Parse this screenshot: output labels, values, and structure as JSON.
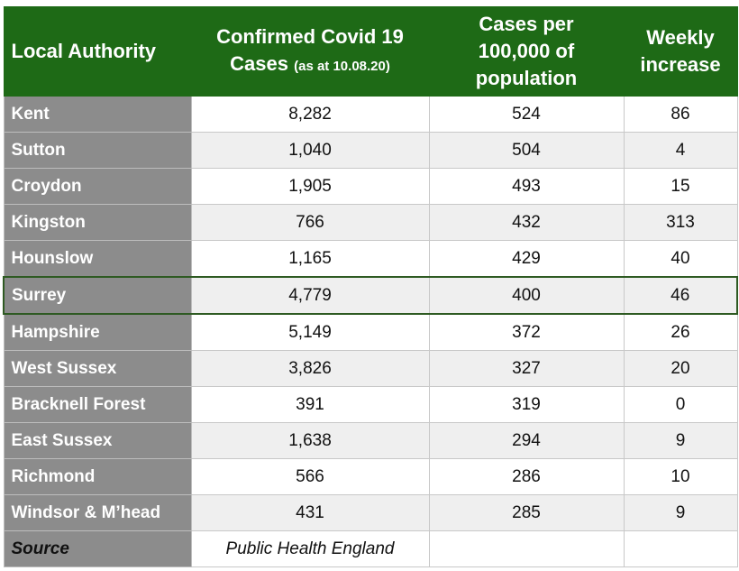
{
  "chart_data": {
    "type": "table",
    "columns": [
      "Local Authority",
      "Confirmed Covid 19 Cases (as at 10.08.20)",
      "Cases per 100,000 of population",
      "Weekly increase"
    ],
    "rows": [
      {
        "name": "Kent",
        "cases": "8,282",
        "per100k": "524",
        "weekly": "86"
      },
      {
        "name": "Sutton",
        "cases": "1,040",
        "per100k": "504",
        "weekly": "4"
      },
      {
        "name": "Croydon",
        "cases": "1,905",
        "per100k": "493",
        "weekly": "15"
      },
      {
        "name": "Kingston",
        "cases": "766",
        "per100k": "432",
        "weekly": "313"
      },
      {
        "name": "Hounslow",
        "cases": "1,165",
        "per100k": "429",
        "weekly": "40"
      },
      {
        "name": "Surrey",
        "cases": "4,779",
        "per100k": "400",
        "weekly": "46"
      },
      {
        "name": "Hampshire",
        "cases": "5,149",
        "per100k": "372",
        "weekly": "26"
      },
      {
        "name": "West Sussex",
        "cases": "3,826",
        "per100k": "327",
        "weekly": "20"
      },
      {
        "name": "Bracknell Forest",
        "cases": "391",
        "per100k": "319",
        "weekly": "0"
      },
      {
        "name": "East Sussex",
        "cases": "1,638",
        "per100k": "294",
        "weekly": "9"
      },
      {
        "name": "Richmond",
        "cases": "566",
        "per100k": "286",
        "weekly": "10"
      },
      {
        "name": "Windsor & M’head",
        "cases": "431",
        "per100k": "285",
        "weekly": "9"
      }
    ],
    "highlighted_row": "Surrey",
    "source_label": "Source",
    "source_value": "Public Health England"
  },
  "header": {
    "col0": "Local Authority",
    "col1_line1": "Confirmed Covid 19",
    "col1_line2": "Cases",
    "col1_small": "(as at 10.08.20)",
    "col2_line1": "Cases per",
    "col2_line2": "100,000 of",
    "col2_line3": "population",
    "col3_line1": "Weekly",
    "col3_line2": "increase"
  },
  "colors": {
    "header_bg": "#1e6a16",
    "name_col_bg": "#8c8c8c",
    "row_alt_bg": "#efefef",
    "highlight_border": "#2e5a22"
  }
}
